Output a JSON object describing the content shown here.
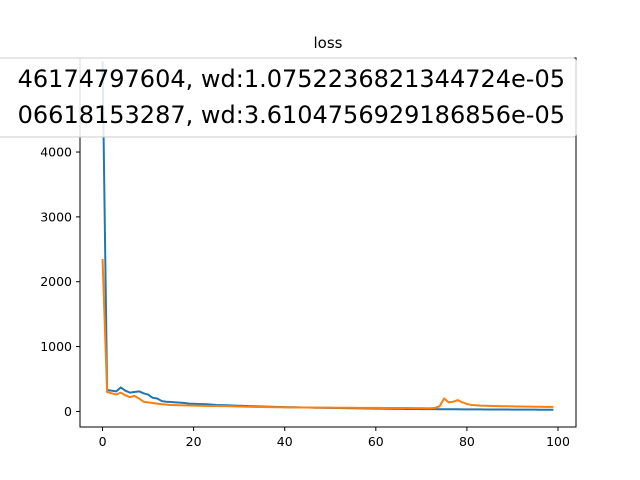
{
  "chart_data": {
    "type": "line",
    "title": "loss",
    "xlabel": "",
    "ylabel": "",
    "xlim": [
      -4.95,
      103.95
    ],
    "ylim": [
      -240,
      5450
    ],
    "x_ticks": [
      0,
      20,
      40,
      60,
      80,
      100
    ],
    "y_ticks": [
      0,
      1000,
      2000,
      3000,
      4000
    ],
    "legend_position": "upper-right",
    "series": [
      {
        "name": "46174797604, wd:1.0752236821344724e-05",
        "color": "#1f77b4",
        "x": [
          0,
          1,
          2,
          3,
          4,
          5,
          6,
          7,
          8,
          9,
          10,
          11,
          12,
          13,
          14,
          15,
          16,
          17,
          18,
          19,
          20,
          21,
          22,
          23,
          24,
          25,
          26,
          27,
          28,
          29,
          30,
          31,
          32,
          33,
          34,
          35,
          36,
          37,
          38,
          39,
          40,
          41,
          42,
          43,
          44,
          45,
          46,
          47,
          48,
          49,
          50,
          51,
          52,
          53,
          54,
          55,
          56,
          57,
          58,
          59,
          60,
          61,
          62,
          63,
          64,
          65,
          66,
          67,
          68,
          69,
          70,
          71,
          72,
          73,
          74,
          75,
          76,
          77,
          78,
          79,
          80,
          81,
          82,
          83,
          84,
          85,
          86,
          87,
          88,
          89,
          90,
          91,
          92,
          93,
          94,
          95,
          96,
          97,
          98,
          99
        ],
        "y": [
          5400,
          330,
          320,
          310,
          370,
          320,
          290,
          300,
          310,
          280,
          260,
          210,
          200,
          160,
          150,
          145,
          140,
          135,
          130,
          120,
          118,
          115,
          113,
          110,
          105,
          100,
          98,
          95,
          93,
          90,
          88,
          85,
          82,
          80,
          78,
          76,
          74,
          72,
          70,
          68,
          66,
          65,
          64,
          62,
          61,
          60,
          58,
          57,
          56,
          55,
          54,
          53,
          52,
          51,
          50,
          49,
          48,
          47,
          46,
          45,
          44,
          43,
          42,
          41,
          40,
          40,
          39,
          38,
          37,
          37,
          36,
          36,
          35,
          35,
          34,
          34,
          33,
          33,
          33,
          32,
          32,
          31,
          31,
          31,
          30,
          30,
          30,
          29,
          29,
          29,
          28,
          28,
          28,
          27,
          27,
          27,
          26,
          26,
          26,
          25
        ]
      },
      {
        "name": "06618153287, wd:3.6104756929186856e-05",
        "color": "#ff7f0e",
        "x": [
          0,
          1,
          2,
          3,
          4,
          5,
          6,
          7,
          8,
          9,
          10,
          11,
          12,
          13,
          14,
          15,
          16,
          17,
          18,
          19,
          20,
          21,
          22,
          23,
          24,
          25,
          26,
          27,
          28,
          29,
          30,
          31,
          32,
          33,
          34,
          35,
          36,
          37,
          38,
          39,
          40,
          41,
          42,
          43,
          44,
          45,
          46,
          47,
          48,
          49,
          50,
          51,
          52,
          53,
          54,
          55,
          56,
          57,
          58,
          59,
          60,
          61,
          62,
          63,
          64,
          65,
          66,
          67,
          68,
          69,
          70,
          71,
          72,
          73,
          74,
          75,
          76,
          77,
          78,
          79,
          80,
          81,
          82,
          83,
          84,
          85,
          86,
          87,
          88,
          89,
          90,
          91,
          92,
          93,
          94,
          95,
          96,
          97,
          98,
          99
        ],
        "y": [
          2350,
          300,
          280,
          260,
          290,
          250,
          220,
          240,
          200,
          150,
          140,
          130,
          120,
          110,
          105,
          100,
          98,
          96,
          94,
          92,
          90,
          88,
          86,
          85,
          84,
          83,
          82,
          81,
          80,
          78,
          76,
          74,
          72,
          70,
          69,
          68,
          67,
          66,
          65,
          64,
          63,
          62,
          62,
          61,
          61,
          60,
          60,
          59,
          59,
          58,
          58,
          57,
          57,
          56,
          56,
          56,
          55,
          55,
          55,
          54,
          54,
          54,
          53,
          53,
          53,
          52,
          52,
          52,
          51,
          51,
          51,
          50,
          50,
          55,
          80,
          200,
          140,
          150,
          175,
          140,
          115,
          100,
          95,
          90,
          88,
          86,
          84,
          82,
          80,
          79,
          78,
          77,
          76,
          75,
          74,
          73,
          72,
          71,
          70,
          70
        ]
      }
    ]
  }
}
